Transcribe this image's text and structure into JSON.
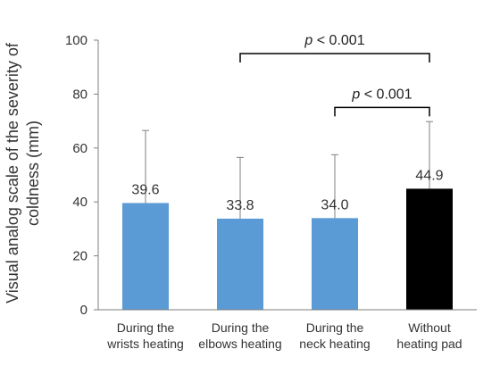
{
  "chart_data": {
    "type": "bar",
    "categories": [
      [
        "During the",
        "wrists heating"
      ],
      [
        "During the",
        "elbows heating"
      ],
      [
        "During the",
        "neck heating"
      ],
      [
        "Without",
        "heating pad"
      ]
    ],
    "values": [
      39.6,
      33.8,
      34.0,
      44.9
    ],
    "value_labels": [
      "39.6",
      "33.8",
      "34.0",
      "44.9"
    ],
    "error_upper": [
      66.5,
      56.5,
      57.5,
      69.8
    ],
    "colors": [
      "#5b9bd5",
      "#5b9bd5",
      "#5b9bd5",
      "#000000"
    ],
    "ylabel": [
      "Visual analog scale of the severity of",
      "coldness (mm)"
    ],
    "xlabel": "",
    "ylim": [
      0,
      100
    ],
    "yticks": [
      "0",
      "20",
      "40",
      "60",
      "80",
      "100"
    ],
    "grid": false,
    "significance": [
      {
        "from": 1,
        "to": 3,
        "p_italic": "p",
        "p_rest": " < 0.001",
        "level": 100
      },
      {
        "from": 2,
        "to": 3,
        "p_italic": "p",
        "p_rest": " < 0.001",
        "level": 80
      }
    ]
  }
}
